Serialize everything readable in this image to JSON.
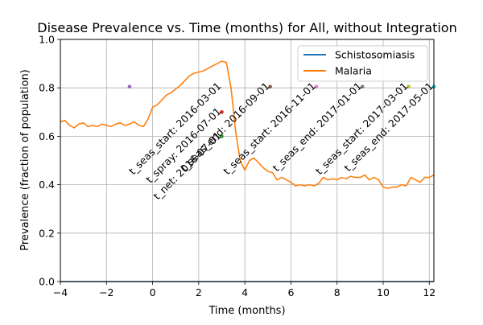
{
  "chart_data": {
    "type": "line",
    "title": "Disease Prevalence vs. Time (months) for All, without Integration",
    "xlabel": "Time (months)",
    "ylabel": "Prevalence (fraction of population)",
    "xlim": [
      -4,
      12.2
    ],
    "ylim": [
      0.0,
      1.0
    ],
    "xticks": [
      -4,
      -2,
      0,
      2,
      4,
      6,
      8,
      10,
      12
    ],
    "xtick_labels": [
      "−4",
      "−2",
      "0",
      "2",
      "4",
      "6",
      "8",
      "10",
      "12"
    ],
    "yticks": [
      0.0,
      0.2,
      0.4,
      0.6,
      0.8,
      1.0
    ],
    "ytick_labels": [
      "0.0",
      "0.2",
      "0.4",
      "0.6",
      "0.8",
      "1.0"
    ],
    "grid": true,
    "legend_position": "top-right",
    "series": [
      {
        "name": "Schistosomiasis",
        "color": "#1f77b4",
        "x": [
          -4,
          12.2
        ],
        "y": [
          0.0,
          0.0
        ]
      },
      {
        "name": "Malaria",
        "color": "#ff7f0e",
        "x": [
          -4.0,
          -3.8,
          -3.6,
          -3.4,
          -3.2,
          -3.0,
          -2.8,
          -2.6,
          -2.4,
          -2.2,
          -2.0,
          -1.8,
          -1.6,
          -1.4,
          -1.2,
          -1.0,
          -0.8,
          -0.6,
          -0.4,
          -0.2,
          0.0,
          0.2,
          0.4,
          0.6,
          0.8,
          1.0,
          1.2,
          1.4,
          1.6,
          1.8,
          2.0,
          2.2,
          2.4,
          2.6,
          2.8,
          3.0,
          3.2,
          3.4,
          3.6,
          3.8,
          4.0,
          4.2,
          4.4,
          4.6,
          4.8,
          5.0,
          5.2,
          5.4,
          5.6,
          5.8,
          6.0,
          6.2,
          6.4,
          6.6,
          6.8,
          7.0,
          7.2,
          7.4,
          7.6,
          7.8,
          8.0,
          8.2,
          8.4,
          8.6,
          8.8,
          9.0,
          9.2,
          9.4,
          9.6,
          9.8,
          10.0,
          10.2,
          10.4,
          10.6,
          10.8,
          11.0,
          11.2,
          11.4,
          11.6,
          11.8,
          12.0,
          12.2
        ],
        "y": [
          0.66,
          0.665,
          0.645,
          0.635,
          0.65,
          0.655,
          0.64,
          0.645,
          0.64,
          0.65,
          0.645,
          0.64,
          0.65,
          0.655,
          0.645,
          0.65,
          0.66,
          0.645,
          0.64,
          0.67,
          0.72,
          0.73,
          0.75,
          0.77,
          0.78,
          0.795,
          0.81,
          0.83,
          0.85,
          0.86,
          0.865,
          0.87,
          0.88,
          0.89,
          0.9,
          0.91,
          0.905,
          0.8,
          0.62,
          0.5,
          0.46,
          0.5,
          0.51,
          0.49,
          0.47,
          0.455,
          0.45,
          0.42,
          0.43,
          0.42,
          0.41,
          0.395,
          0.4,
          0.395,
          0.4,
          0.395,
          0.405,
          0.43,
          0.42,
          0.425,
          0.42,
          0.43,
          0.425,
          0.435,
          0.43,
          0.43,
          0.44,
          0.42,
          0.43,
          0.42,
          0.39,
          0.385,
          0.39,
          0.39,
          0.4,
          0.395,
          0.43,
          0.42,
          0.41,
          0.43,
          0.43,
          0.44
        ]
      }
    ],
    "annotations": [
      {
        "text": "t_seas_start: 2016-03-01",
        "x": 3.0,
        "y": 0.805,
        "dot_color": "#9467bd",
        "dot_x": -1.0
      },
      {
        "text": "t_spray: 2016-07-01",
        "x": 3.0,
        "y": 0.7,
        "dot_color": "#d62728",
        "dot_x": 3.0
      },
      {
        "text": "t_net: 2016-07-01",
        "x": 3.0,
        "y": 0.6,
        "dot_color": "#2ca02c",
        "dot_x": 3.0
      },
      {
        "text": "t_seas_end: 2016-09-01",
        "x": 5.1,
        "y": 0.805,
        "dot_color": "#8c564b",
        "dot_x": 5.1
      },
      {
        "text": "t_seas_start: 2016-11-01",
        "x": 7.1,
        "y": 0.805,
        "dot_color": "#e377c2",
        "dot_x": 7.1
      },
      {
        "text": "t_seas_end: 2017-01-01",
        "x": 9.1,
        "y": 0.805,
        "dot_color": "#7f7f7f",
        "dot_x": 9.1
      },
      {
        "text": "t_seas_start: 2017-03-01",
        "x": 11.1,
        "y": 0.805,
        "dot_color": "#bcbd22",
        "dot_x": 11.1
      },
      {
        "text": "t_seas_end: 2017-05-01",
        "x": 12.2,
        "y": 0.805,
        "dot_color": "#17becf",
        "dot_x": 12.2
      }
    ]
  }
}
